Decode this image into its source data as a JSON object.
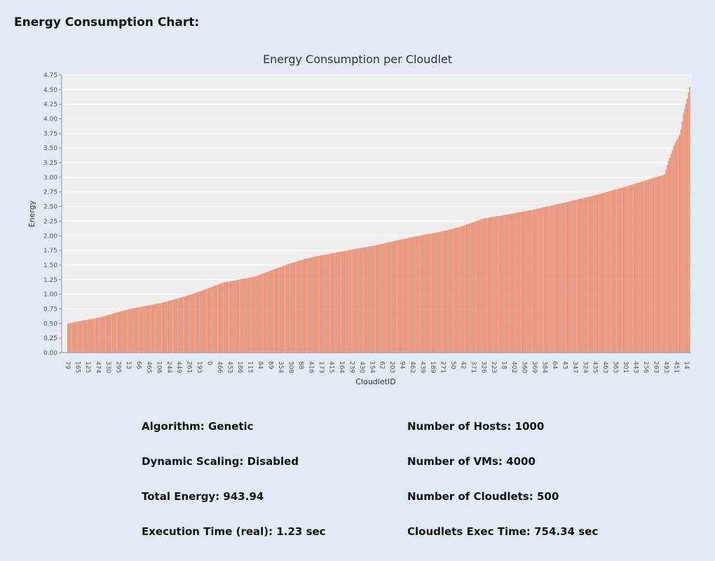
{
  "section_title": "Energy Consumption Chart:",
  "chart_data": {
    "type": "bar",
    "title": "Energy Consumption per Cloudlet",
    "xlabel": "CloudletID",
    "ylabel": "Energy",
    "ylim": [
      0,
      4.75
    ],
    "y_ticks": [
      "0.00",
      "0.25",
      "0.50",
      "0.75",
      "1.00",
      "1.25",
      "1.50",
      "1.75",
      "2.00",
      "2.25",
      "2.50",
      "2.75",
      "3.00",
      "3.25",
      "3.50",
      "3.75",
      "4.00",
      "4.25",
      "4.50",
      "4.75"
    ],
    "x_tick_labels": [
      "79",
      "165",
      "125",
      "474",
      "330",
      "295",
      "13",
      "66",
      "465",
      "106",
      "244",
      "449",
      "261",
      "193",
      "0",
      "466",
      "453",
      "186",
      "115",
      "84",
      "89",
      "354",
      "308",
      "88",
      "416",
      "173",
      "415",
      "164",
      "239",
      "430",
      "154",
      "62",
      "203",
      "94",
      "462",
      "439",
      "189",
      "271",
      "50",
      "42",
      "371",
      "326",
      "223",
      "18",
      "402",
      "360",
      "369",
      "384",
      "64",
      "43",
      "347",
      "324",
      "435",
      "463",
      "363",
      "301",
      "443",
      "256",
      "263",
      "493",
      "451",
      "14"
    ],
    "bar_count": 500,
    "curve_knots": [
      [
        0,
        0.5
      ],
      [
        0.0125,
        0.525
      ],
      [
        0.05,
        0.6
      ],
      [
        0.1,
        0.75
      ],
      [
        0.125,
        0.8
      ],
      [
        0.15,
        0.85
      ],
      [
        0.2,
        1.0
      ],
      [
        0.25,
        1.2
      ],
      [
        0.3,
        1.3
      ],
      [
        0.35,
        1.5
      ],
      [
        0.38,
        1.6
      ],
      [
        0.4,
        1.65
      ],
      [
        0.45,
        1.75
      ],
      [
        0.5,
        1.85
      ],
      [
        0.55,
        1.97
      ],
      [
        0.6,
        2.07
      ],
      [
        0.63,
        2.15
      ],
      [
        0.67,
        2.3
      ],
      [
        0.7,
        2.35
      ],
      [
        0.75,
        2.45
      ],
      [
        0.8,
        2.57
      ],
      [
        0.85,
        2.7
      ],
      [
        0.9,
        2.85
      ],
      [
        0.93,
        2.95
      ],
      [
        0.96,
        3.05
      ],
      [
        0.965,
        3.25
      ],
      [
        0.975,
        3.55
      ],
      [
        0.985,
        3.75
      ],
      [
        0.99,
        4.1
      ],
      [
        0.995,
        4.3
      ],
      [
        1.0,
        4.55
      ]
    ],
    "bar_color": "#e9876a",
    "plot_bg": "#eeeeee",
    "grid": true
  },
  "info": {
    "algorithm": "Algorithm: Genetic",
    "dynamic_scaling": "Dynamic Scaling: Disabled",
    "total_energy": "Total Energy: 943.94",
    "execution_time": "Execution Time (real): 1.23 sec",
    "num_hosts": "Number of Hosts: 1000",
    "num_vms": "Number of VMs: 4000",
    "num_cloudlets": "Number of Cloudlets: 500",
    "cloudlets_exec_time": "Cloudlets Exec Time: 754.34 sec"
  }
}
